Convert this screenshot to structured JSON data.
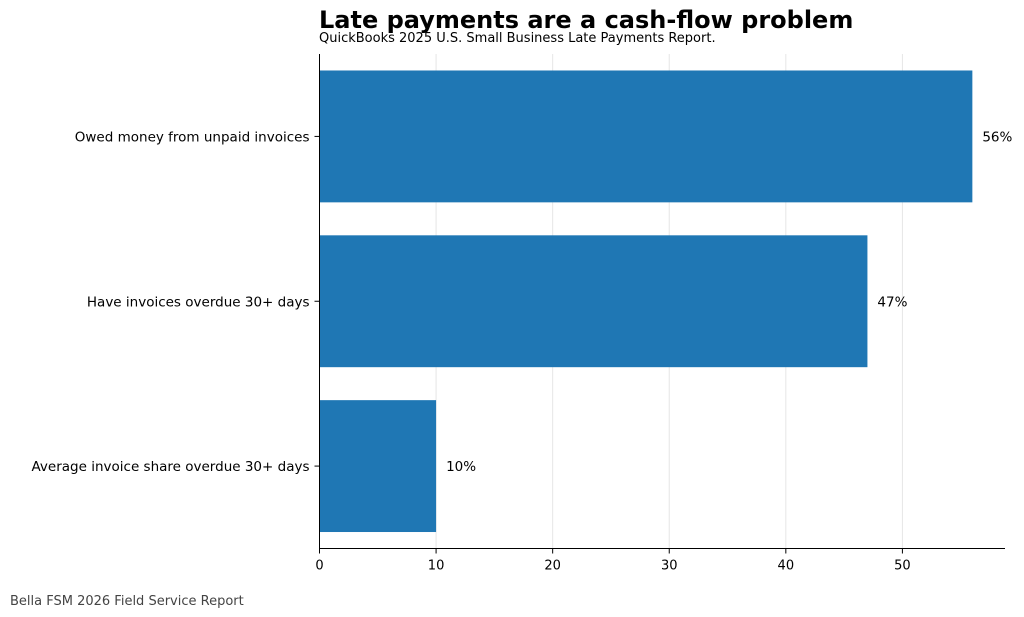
{
  "chart_data": {
    "type": "bar",
    "orientation": "horizontal",
    "title": "Late payments are a cash-flow problem",
    "subtitle": "QuickBooks 2025 U.S. Small Business Late Payments Report.",
    "categories": [
      "Owed money from unpaid invoices",
      "Have invoices overdue 30+ days",
      "Average invoice share overdue 30+ days"
    ],
    "values": [
      56,
      47,
      10
    ],
    "value_labels": [
      "56%",
      "47%",
      "10%"
    ],
    "xlabel": "",
    "ylabel": "",
    "xlim": [
      0,
      58.8
    ],
    "x_ticks": [
      0,
      10,
      20,
      30,
      40,
      50
    ],
    "x_tick_labels": [
      "0",
      "10",
      "20",
      "30",
      "40",
      "50"
    ],
    "grid": "vertical",
    "legend": "none",
    "bar_color": "#1f77b4",
    "grid_color": "#e6e6e6"
  },
  "footer": {
    "source": "Bella FSM 2026 Field Service Report"
  }
}
